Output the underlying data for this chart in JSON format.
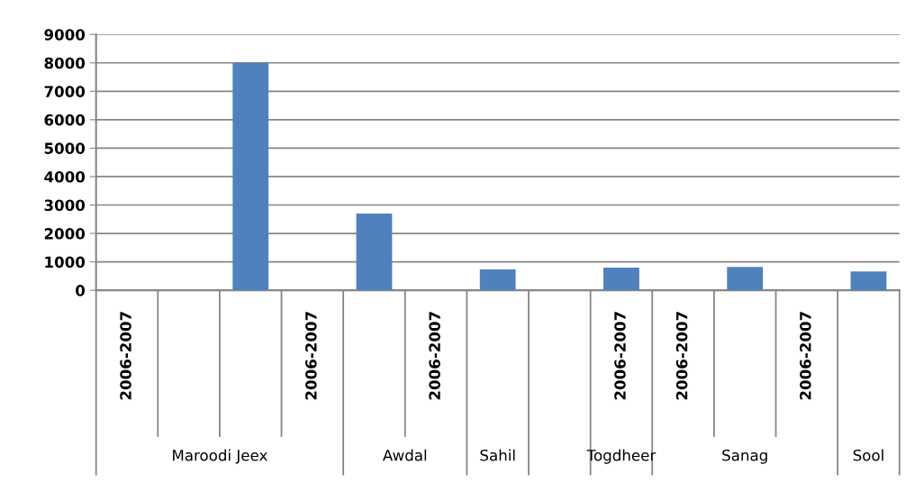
{
  "chart_data": {
    "type": "bar",
    "categories": [
      "2006-2007",
      null,
      null,
      "2006-2007",
      null,
      "2006-2007",
      null,
      null,
      "2006-2007",
      "2006-2007",
      null,
      "2006-2007",
      null
    ],
    "values": [
      null,
      null,
      8000,
      null,
      2700,
      null,
      730,
      null,
      800,
      null,
      820,
      null,
      665
    ],
    "color": "#4f81bd",
    "ylim": [
      0,
      9000
    ],
    "yticks": [
      0,
      1000,
      2000,
      3000,
      4000,
      5000,
      6000,
      7000,
      8000,
      9000
    ],
    "grid": "y",
    "annotations": [
      "Maroodi Jeex",
      "Awdal",
      "Sahil",
      "Togdheer",
      "Sanag",
      "Sool"
    ]
  }
}
